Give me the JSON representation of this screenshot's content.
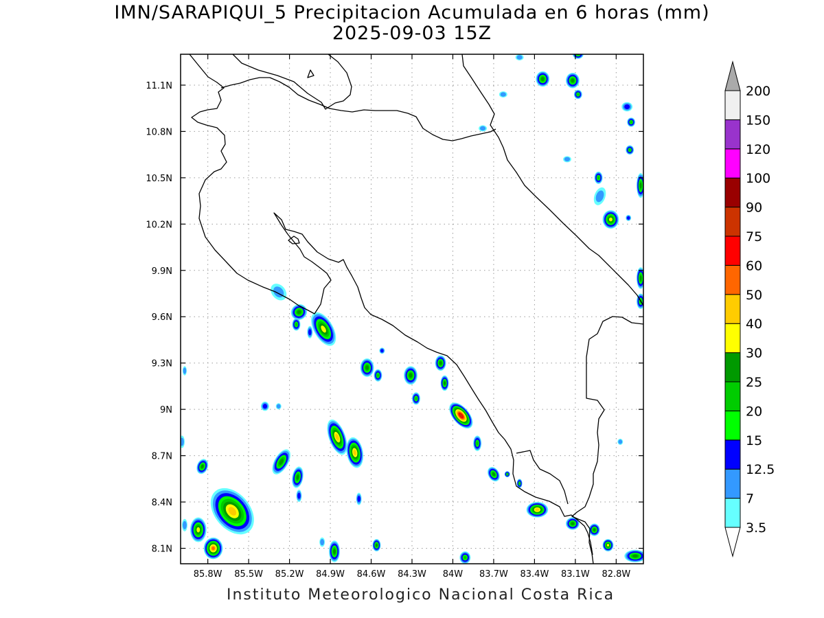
{
  "title_line1": "IMN/SARAPIQUI_5 Precipitacion Acumulada en 6 horas (mm)",
  "title_line2": "2025-09-03 15Z",
  "credit": "Instituto Meteorologico Nacional Costa Rica",
  "map": {
    "lon_range": [
      -86.0,
      -82.6
    ],
    "lat_range": [
      8.0,
      11.3
    ],
    "lon_ticks": [
      {
        "value": -85.8,
        "label": "85.8W"
      },
      {
        "value": -85.5,
        "label": "85.5W"
      },
      {
        "value": -85.2,
        "label": "85.2W"
      },
      {
        "value": -84.9,
        "label": "84.9W"
      },
      {
        "value": -84.6,
        "label": "84.6W"
      },
      {
        "value": -84.3,
        "label": "84.3W"
      },
      {
        "value": -84.0,
        "label": "84W"
      },
      {
        "value": -83.7,
        "label": "83.7W"
      },
      {
        "value": -83.4,
        "label": "83.4W"
      },
      {
        "value": -83.1,
        "label": "83.1W"
      },
      {
        "value": -82.8,
        "label": "82.8W"
      }
    ],
    "lat_ticks": [
      {
        "value": 8.1,
        "label": "8.1N"
      },
      {
        "value": 8.4,
        "label": "8.4N"
      },
      {
        "value": 8.7,
        "label": "8.7N"
      },
      {
        "value": 9.0,
        "label": "9N"
      },
      {
        "value": 9.3,
        "label": "9.3N"
      },
      {
        "value": 9.6,
        "label": "9.6N"
      },
      {
        "value": 9.9,
        "label": "9.9N"
      },
      {
        "value": 10.2,
        "label": "10.2N"
      },
      {
        "value": 10.5,
        "label": "10.5N"
      },
      {
        "value": 10.8,
        "label": "10.8N"
      },
      {
        "value": 11.1,
        "label": "11.1N"
      }
    ],
    "grid": true
  },
  "legend": {
    "levels": [
      {
        "label": "3.5",
        "color": "#66ffff"
      },
      {
        "label": "7",
        "color": "#3399ff"
      },
      {
        "label": "12.5",
        "color": "#0000ff"
      },
      {
        "label": "15",
        "color": "#00ff00"
      },
      {
        "label": "20",
        "color": "#00cc00"
      },
      {
        "label": "25",
        "color": "#009900"
      },
      {
        "label": "30",
        "color": "#ffff00"
      },
      {
        "label": "40",
        "color": "#ffcc00"
      },
      {
        "label": "50",
        "color": "#ff6600"
      },
      {
        "label": "60",
        "color": "#ff0000"
      },
      {
        "label": "75",
        "color": "#cc3300"
      },
      {
        "label": "90",
        "color": "#990000"
      },
      {
        "label": "100",
        "color": "#ff00ff"
      },
      {
        "label": "120",
        "color": "#9933cc"
      },
      {
        "label": "150",
        "color": "#f0f0f0"
      },
      {
        "label": "200",
        "color": "#999999"
      }
    ],
    "below_color": "#ffffff",
    "above_color": "#aaaaaa"
  },
  "cells": [
    {
      "lon": -85.62,
      "lat": 8.34,
      "rx": 0.13,
      "ry": 0.17,
      "rot": -40,
      "max": 40
    },
    {
      "lon": -85.87,
      "lat": 8.22,
      "rx": 0.06,
      "ry": 0.08,
      "rot": 0,
      "max": 30
    },
    {
      "lon": -85.76,
      "lat": 8.1,
      "rx": 0.07,
      "ry": 0.07,
      "rot": 0,
      "max": 50
    },
    {
      "lon": -85.84,
      "lat": 8.63,
      "rx": 0.04,
      "ry": 0.05,
      "rot": 20,
      "max": 25
    },
    {
      "lon": -85.26,
      "lat": 8.66,
      "rx": 0.05,
      "ry": 0.09,
      "rot": 30,
      "max": 25
    },
    {
      "lon": -85.14,
      "lat": 8.56,
      "rx": 0.04,
      "ry": 0.07,
      "rot": 10,
      "max": 25
    },
    {
      "lon": -84.85,
      "lat": 8.82,
      "rx": 0.06,
      "ry": 0.12,
      "rot": -20,
      "max": 40
    },
    {
      "lon": -84.72,
      "lat": 8.72,
      "rx": 0.06,
      "ry": 0.1,
      "rot": -10,
      "max": 40
    },
    {
      "lon": -84.87,
      "lat": 8.08,
      "rx": 0.04,
      "ry": 0.07,
      "rot": 0,
      "max": 25
    },
    {
      "lon": -84.56,
      "lat": 8.12,
      "rx": 0.03,
      "ry": 0.04,
      "rot": 0,
      "max": 25
    },
    {
      "lon": -84.69,
      "lat": 8.42,
      "rx": 0.02,
      "ry": 0.04,
      "rot": 0,
      "max": 12.5
    },
    {
      "lon": -85.38,
      "lat": 9.02,
      "rx": 0.03,
      "ry": 0.03,
      "rot": 0,
      "max": 12.5
    },
    {
      "lon": -85.28,
      "lat": 9.02,
      "rx": 0.02,
      "ry": 0.02,
      "rot": 0,
      "max": 7
    },
    {
      "lon": -85.13,
      "lat": 9.63,
      "rx": 0.06,
      "ry": 0.05,
      "rot": -35,
      "max": 25
    },
    {
      "lon": -85.05,
      "lat": 9.5,
      "rx": 0.02,
      "ry": 0.04,
      "rot": 0,
      "max": 12.5
    },
    {
      "lon": -85.15,
      "lat": 9.55,
      "rx": 0.03,
      "ry": 0.04,
      "rot": 0,
      "max": 20
    },
    {
      "lon": -84.95,
      "lat": 9.52,
      "rx": 0.07,
      "ry": 0.12,
      "rot": -30,
      "max": 30
    },
    {
      "lon": -84.63,
      "lat": 9.27,
      "rx": 0.05,
      "ry": 0.06,
      "rot": 0,
      "max": 25
    },
    {
      "lon": -84.55,
      "lat": 9.22,
      "rx": 0.03,
      "ry": 0.04,
      "rot": 0,
      "max": 20
    },
    {
      "lon": -84.52,
      "lat": 9.38,
      "rx": 0.02,
      "ry": 0.02,
      "rot": 0,
      "max": 12.5
    },
    {
      "lon": -84.31,
      "lat": 9.22,
      "rx": 0.05,
      "ry": 0.06,
      "rot": 0,
      "max": 25
    },
    {
      "lon": -84.27,
      "lat": 9.07,
      "rx": 0.03,
      "ry": 0.04,
      "rot": 0,
      "max": 20
    },
    {
      "lon": -84.09,
      "lat": 9.3,
      "rx": 0.04,
      "ry": 0.05,
      "rot": 0,
      "max": 25
    },
    {
      "lon": -84.06,
      "lat": 9.17,
      "rx": 0.03,
      "ry": 0.05,
      "rot": 0,
      "max": 25
    },
    {
      "lon": -83.94,
      "lat": 8.96,
      "rx": 0.06,
      "ry": 0.1,
      "rot": -40,
      "max": 75
    },
    {
      "lon": -83.82,
      "lat": 8.78,
      "rx": 0.03,
      "ry": 0.05,
      "rot": 0,
      "max": 20
    },
    {
      "lon": -83.7,
      "lat": 8.58,
      "rx": 0.04,
      "ry": 0.05,
      "rot": -30,
      "max": 25
    },
    {
      "lon": -83.6,
      "lat": 8.58,
      "rx": 0.02,
      "ry": 0.02,
      "rot": 0,
      "max": 20
    },
    {
      "lon": -83.51,
      "lat": 8.52,
      "rx": 0.02,
      "ry": 0.03,
      "rot": 0,
      "max": 20
    },
    {
      "lon": -83.38,
      "lat": 8.35,
      "rx": 0.08,
      "ry": 0.05,
      "rot": 0,
      "max": 40
    },
    {
      "lon": -83.12,
      "lat": 8.26,
      "rx": 0.05,
      "ry": 0.04,
      "rot": 0,
      "max": 25
    },
    {
      "lon": -82.96,
      "lat": 8.22,
      "rx": 0.04,
      "ry": 0.04,
      "rot": 0,
      "max": 25
    },
    {
      "lon": -82.86,
      "lat": 8.12,
      "rx": 0.04,
      "ry": 0.04,
      "rot": 0,
      "max": 30
    },
    {
      "lon": -82.66,
      "lat": 8.05,
      "rx": 0.08,
      "ry": 0.04,
      "rot": 0,
      "max": 25
    },
    {
      "lon": -83.91,
      "lat": 8.04,
      "rx": 0.04,
      "ry": 0.04,
      "rot": 0,
      "max": 20
    },
    {
      "lon": -82.84,
      "lat": 10.23,
      "rx": 0.06,
      "ry": 0.06,
      "rot": 0,
      "max": 30
    },
    {
      "lon": -82.71,
      "lat": 10.24,
      "rx": 0.02,
      "ry": 0.02,
      "rot": 0,
      "max": 12.5
    },
    {
      "lon": -82.62,
      "lat": 10.45,
      "rx": 0.03,
      "ry": 0.08,
      "rot": 0,
      "max": 25
    },
    {
      "lon": -82.62,
      "lat": 9.85,
      "rx": 0.03,
      "ry": 0.07,
      "rot": 0,
      "max": 25
    },
    {
      "lon": -82.62,
      "lat": 9.7,
      "rx": 0.03,
      "ry": 0.05,
      "rot": 0,
      "max": 20
    },
    {
      "lon": -82.93,
      "lat": 10.5,
      "rx": 0.03,
      "ry": 0.04,
      "rot": 0,
      "max": 20
    },
    {
      "lon": -82.7,
      "lat": 10.68,
      "rx": 0.03,
      "ry": 0.03,
      "rot": 0,
      "max": 20
    },
    {
      "lon": -82.69,
      "lat": 10.86,
      "rx": 0.03,
      "ry": 0.03,
      "rot": 0,
      "max": 20
    },
    {
      "lon": -83.34,
      "lat": 11.14,
      "rx": 0.05,
      "ry": 0.05,
      "rot": 0,
      "max": 25
    },
    {
      "lon": -83.12,
      "lat": 11.13,
      "rx": 0.05,
      "ry": 0.05,
      "rot": 0,
      "max": 25
    },
    {
      "lon": -83.08,
      "lat": 11.04,
      "rx": 0.03,
      "ry": 0.03,
      "rot": 0,
      "max": 20
    },
    {
      "lon": -82.72,
      "lat": 10.96,
      "rx": 0.04,
      "ry": 0.03,
      "rot": 0,
      "max": 12.5
    },
    {
      "lon": -83.08,
      "lat": 11.3,
      "rx": 0.04,
      "ry": 0.03,
      "rot": 0,
      "max": 20
    },
    {
      "lon": -82.92,
      "lat": 10.38,
      "rx": 0.04,
      "ry": 0.06,
      "rot": 20,
      "max": 7
    },
    {
      "lon": -83.16,
      "lat": 10.62,
      "rx": 0.03,
      "ry": 0.02,
      "rot": 0,
      "max": 7
    },
    {
      "lon": -83.78,
      "lat": 10.82,
      "rx": 0.03,
      "ry": 0.02,
      "rot": 0,
      "max": 7
    },
    {
      "lon": -83.63,
      "lat": 11.04,
      "rx": 0.03,
      "ry": 0.02,
      "rot": 0,
      "max": 7
    },
    {
      "lon": -83.51,
      "lat": 11.28,
      "rx": 0.03,
      "ry": 0.02,
      "rot": 0,
      "max": 7
    },
    {
      "lon": -85.28,
      "lat": 9.76,
      "rx": 0.05,
      "ry": 0.06,
      "rot": -40,
      "max": 7
    },
    {
      "lon": -85.97,
      "lat": 8.25,
      "rx": 0.02,
      "ry": 0.04,
      "rot": 0,
      "max": 7
    },
    {
      "lon": -85.97,
      "lat": 9.25,
      "rx": 0.015,
      "ry": 0.03,
      "rot": 0,
      "max": 7
    },
    {
      "lon": -85.99,
      "lat": 8.79,
      "rx": 0.02,
      "ry": 0.04,
      "rot": 0,
      "max": 7
    },
    {
      "lon": -84.96,
      "lat": 8.14,
      "rx": 0.02,
      "ry": 0.03,
      "rot": 0,
      "max": 7
    },
    {
      "lon": -85.13,
      "lat": 8.44,
      "rx": 0.02,
      "ry": 0.04,
      "rot": 0,
      "max": 12.5
    },
    {
      "lon": -82.77,
      "lat": 8.79,
      "rx": 0.02,
      "ry": 0.02,
      "rot": 0,
      "max": 7
    }
  ]
}
